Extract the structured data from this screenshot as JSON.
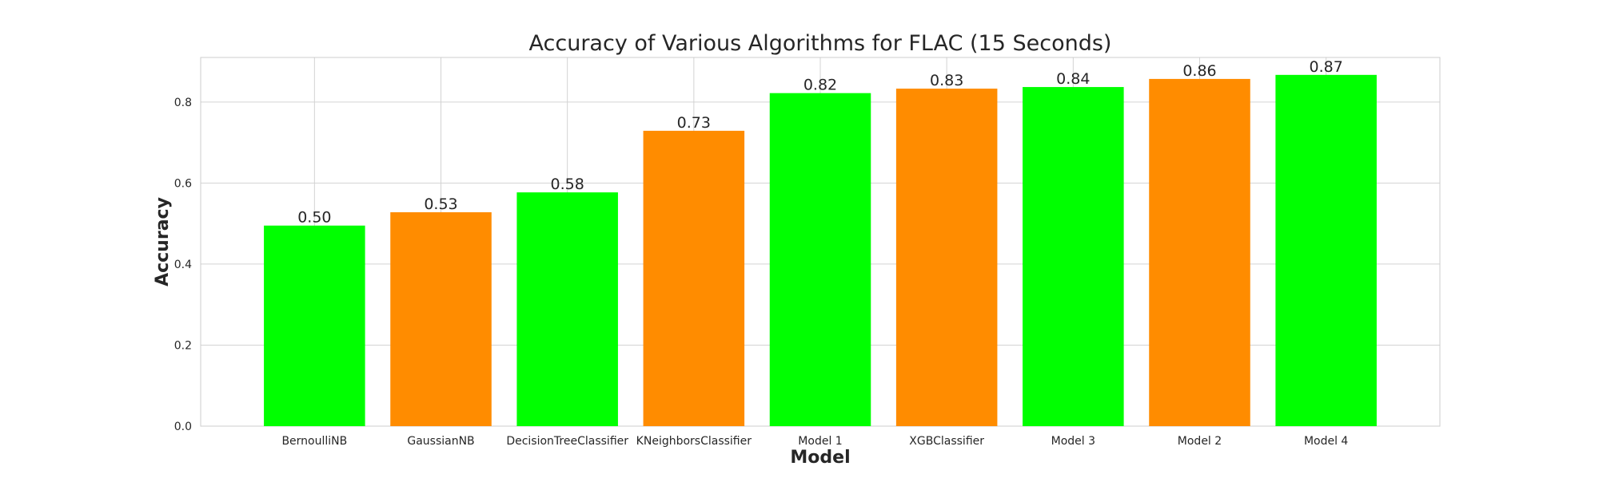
{
  "chart_data": {
    "type": "bar",
    "title": "Accuracy of Various Algorithms for FLAC (15 Seconds)",
    "xlabel": "Model",
    "ylabel": "Accuracy",
    "categories": [
      "BernoulliNB",
      "GaussianNB",
      "DecisionTreeClassifier",
      "KNeighborsClassifier",
      "Model 1",
      "XGBClassifier",
      "Model 3",
      "Model 2",
      "Model 4"
    ],
    "values": [
      0.495,
      0.528,
      0.577,
      0.729,
      0.822,
      0.833,
      0.837,
      0.857,
      0.867
    ],
    "data_labels": [
      "0.50",
      "0.53",
      "0.58",
      "0.73",
      "0.82",
      "0.83",
      "0.84",
      "0.86",
      "0.87"
    ],
    "bar_colors": [
      "#00ff00",
      "#ff8c00",
      "#00ff00",
      "#ff8c00",
      "#00ff00",
      "#ff8c00",
      "#00ff00",
      "#ff8c00",
      "#00ff00"
    ],
    "ylim": [
      0,
      0.91
    ],
    "yticks": [
      0.0,
      0.2,
      0.4,
      0.6,
      0.8
    ],
    "ytick_labels": [
      "0.0",
      "0.2",
      "0.4",
      "0.6",
      "0.8"
    ],
    "grid": true,
    "legend": "none"
  },
  "colors": {
    "green": "#00ff00",
    "orange": "#ff8c00",
    "grid": "#d3d3d3",
    "text": "#262626"
  }
}
